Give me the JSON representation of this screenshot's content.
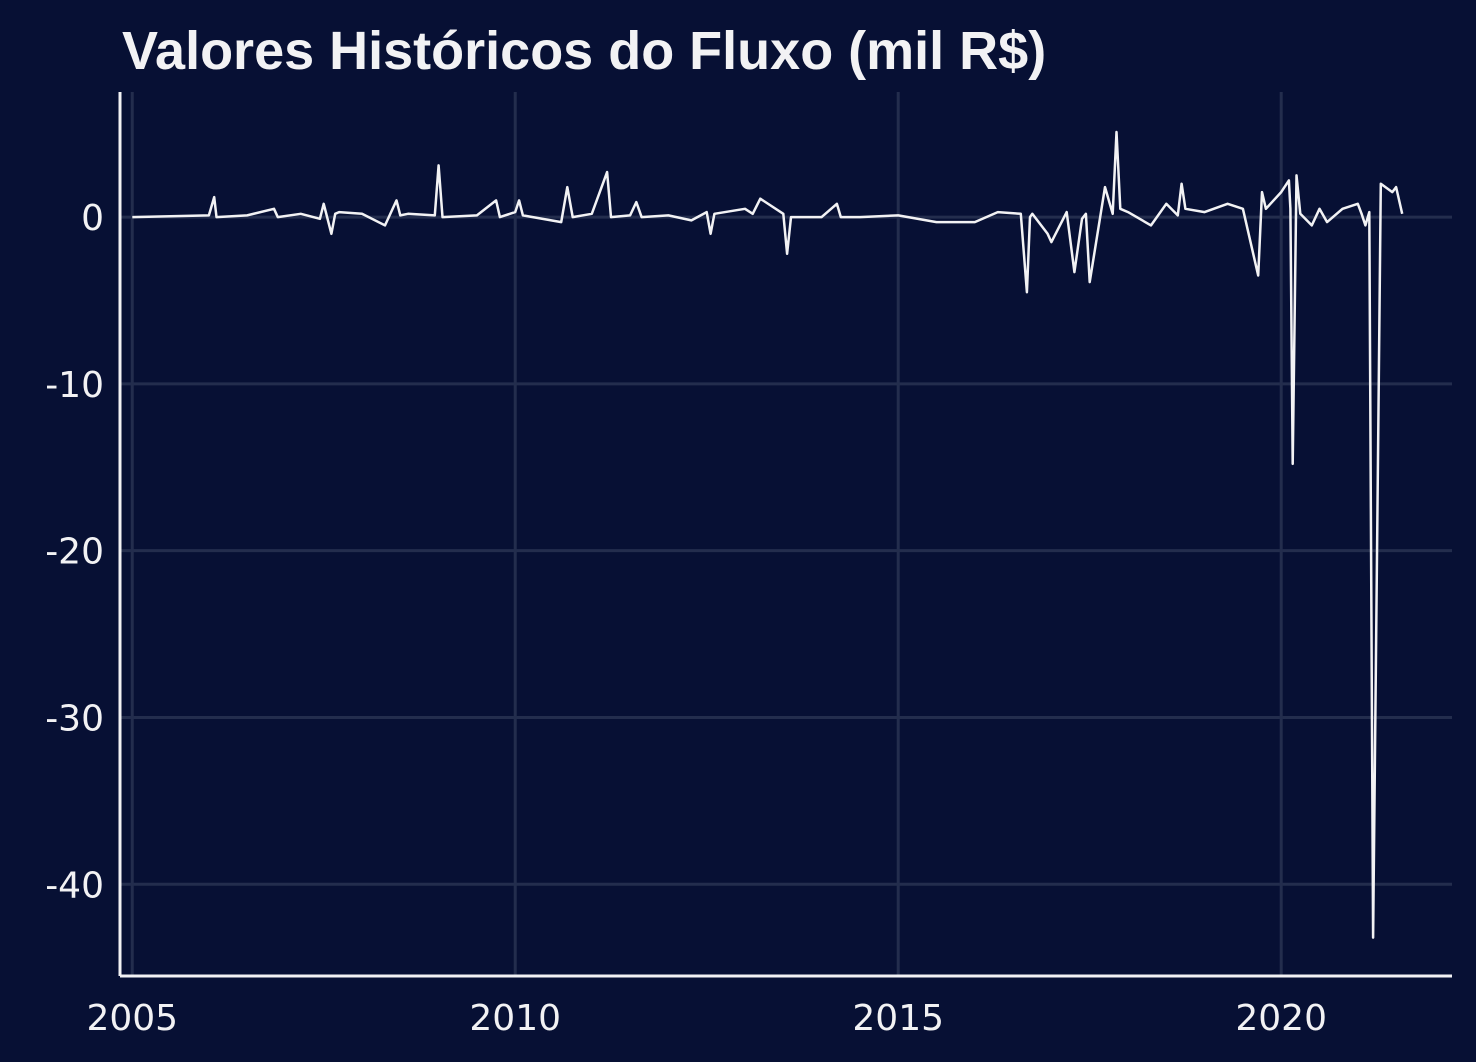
{
  "colors": {
    "background": "#071034",
    "grid": "#232d4d",
    "axis": "#f2f2f4",
    "line": "#f2f2f4",
    "text": "#f2f2f4"
  },
  "chart_data": {
    "type": "line",
    "title": "Valores Históricos do Fluxo (mil R$)",
    "xlabel": "",
    "ylabel": "",
    "xlim": [
      2004.84,
      2022.23
    ],
    "ylim": [
      -45.5,
      7.5
    ],
    "x_ticks": [
      2005,
      2010,
      2015,
      2020
    ],
    "x_tick_labels": [
      "2005",
      "2010",
      "2015",
      "2020"
    ],
    "y_ticks": [
      0,
      -10,
      -20,
      -30,
      -40
    ],
    "y_tick_labels": [
      "0",
      "-10",
      "-20",
      "-30",
      "-40"
    ],
    "grid": true,
    "legend": "none",
    "series": [
      {
        "x": [
          2005.0,
          2005.5,
          2006.0,
          2006.07,
          2006.1,
          2006.5,
          2006.85,
          2006.9,
          2007.2,
          2007.45,
          2007.5,
          2007.6,
          2007.65,
          2007.7,
          2008.0,
          2008.3,
          2008.45,
          2008.5,
          2008.6,
          2008.95,
          2009.0,
          2009.05,
          2009.5,
          2009.75,
          2009.8,
          2010.0,
          2010.05,
          2010.1,
          2010.6,
          2010.68,
          2010.75,
          2011.0,
          2011.2,
          2011.25,
          2011.5,
          2011.58,
          2011.65,
          2012.0,
          2012.3,
          2012.5,
          2012.55,
          2012.6,
          2013.0,
          2013.1,
          2013.2,
          2013.5,
          2013.55,
          2013.6,
          2014.0,
          2014.2,
          2014.25,
          2014.5,
          2015.0,
          2015.5,
          2016.0,
          2016.3,
          2016.6,
          2016.68,
          2016.72,
          2016.75,
          2016.95,
          2017.0,
          2017.2,
          2017.3,
          2017.4,
          2017.45,
          2017.5,
          2017.7,
          2017.8,
          2017.85,
          2017.9,
          2018.0,
          2018.3,
          2018.5,
          2018.65,
          2018.7,
          2018.75,
          2019.0,
          2019.3,
          2019.5,
          2019.7,
          2019.75,
          2019.8,
          2020.0,
          2020.1,
          2020.12,
          2020.15,
          2020.2,
          2020.25,
          2020.4,
          2020.5,
          2020.6,
          2020.8,
          2021.0,
          2021.05,
          2021.1,
          2021.15,
          2021.2,
          2021.3,
          2021.45,
          2021.5,
          2021.58
        ],
        "y": [
          0.0,
          0.05,
          0.1,
          1.2,
          0.0,
          0.1,
          0.5,
          0.0,
          0.2,
          -0.1,
          0.8,
          -1.0,
          0.2,
          0.3,
          0.2,
          -0.5,
          1.0,
          0.1,
          0.2,
          0.1,
          3.1,
          0.0,
          0.1,
          1.0,
          0.0,
          0.3,
          1.0,
          0.1,
          -0.3,
          1.8,
          0.0,
          0.2,
          2.7,
          0.0,
          0.1,
          0.9,
          0.0,
          0.1,
          -0.2,
          0.3,
          -1.0,
          0.2,
          0.5,
          0.2,
          1.1,
          0.2,
          -2.2,
          0.0,
          0.0,
          0.8,
          0.0,
          0.0,
          0.1,
          -0.3,
          -0.3,
          0.3,
          0.2,
          -4.5,
          0.0,
          0.2,
          -1.0,
          -1.5,
          0.3,
          -3.3,
          -0.1,
          0.2,
          -3.9,
          1.8,
          0.2,
          5.1,
          0.5,
          0.3,
          -0.5,
          0.8,
          0.1,
          2.0,
          0.5,
          0.3,
          0.8,
          0.5,
          -3.5,
          1.5,
          0.5,
          1.5,
          2.2,
          0.5,
          -14.8,
          2.5,
          0.2,
          -0.5,
          0.5,
          -0.3,
          0.5,
          0.8,
          0.2,
          -0.5,
          0.3,
          -43.2,
          2.0,
          1.5,
          1.8,
          0.2
        ]
      }
    ]
  }
}
